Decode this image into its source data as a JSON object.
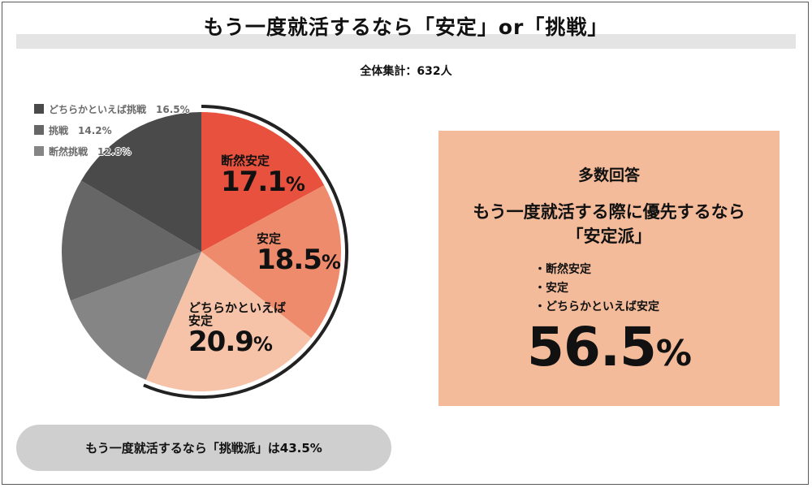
{
  "title": "もう一度就活するなら「安定」or「挑戦」",
  "subtitle": "全体集計：632人",
  "colors": {
    "danzen_antei": "#e8513d",
    "antei": "#ee8b6c",
    "dochiraka_antei": "#f6c2a8",
    "danzen_chousen": "#858585",
    "chousen": "#666666",
    "dochiraka_chousen": "#4a4a4a",
    "summary_bg": "#f4bb9b",
    "pill_bg": "#cfcfcf"
  },
  "legend": [
    {
      "label": "どちらかといえば挑戦　16.5%",
      "color": "#4a4a4a"
    },
    {
      "label": "挑戦　14.2%",
      "color": "#666666"
    },
    {
      "label": "断然挑戦　12.8%",
      "color": "#858585"
    }
  ],
  "labels": {
    "danzen_antei_name": "断然安定",
    "danzen_antei_pct": "17.1",
    "antei_name": "安定",
    "antei_pct": "18.5",
    "dochiraka_antei_name1": "どちらかといえば",
    "dochiraka_antei_name2": "安定",
    "dochiraka_antei_pct": "20.9",
    "pct_sign": "%"
  },
  "chart_data": {
    "type": "pie",
    "title": "もう一度就活するなら「安定」or「挑戦」",
    "subtitle": "全体集計：632人",
    "slices": [
      {
        "name": "断然安定",
        "value": 17.1,
        "color": "#e8513d"
      },
      {
        "name": "安定",
        "value": 18.5,
        "color": "#ee8b6c"
      },
      {
        "name": "どちらかといえば安定",
        "value": 20.9,
        "color": "#f6c2a8"
      },
      {
        "name": "断然挑戦",
        "value": 12.8,
        "color": "#858585"
      },
      {
        "name": "挑戦",
        "value": 14.2,
        "color": "#666666"
      },
      {
        "name": "どちらかといえば挑戦",
        "value": 16.5,
        "color": "#4a4a4a"
      }
    ],
    "start": "12 o'clock",
    "direction": "clockwise",
    "legend_position": "top-left"
  },
  "summary": {
    "heading": "多数回答",
    "line1": "もう一度就活する際に優先するなら",
    "line2": "「安定派」",
    "items": [
      "・断然安定",
      "・安定",
      "・どちらかといえば安定"
    ],
    "total": "56.5",
    "pct_sign": "%"
  },
  "challenge": {
    "text": "もう一度就活するなら「挑戦派」は43.5%"
  }
}
